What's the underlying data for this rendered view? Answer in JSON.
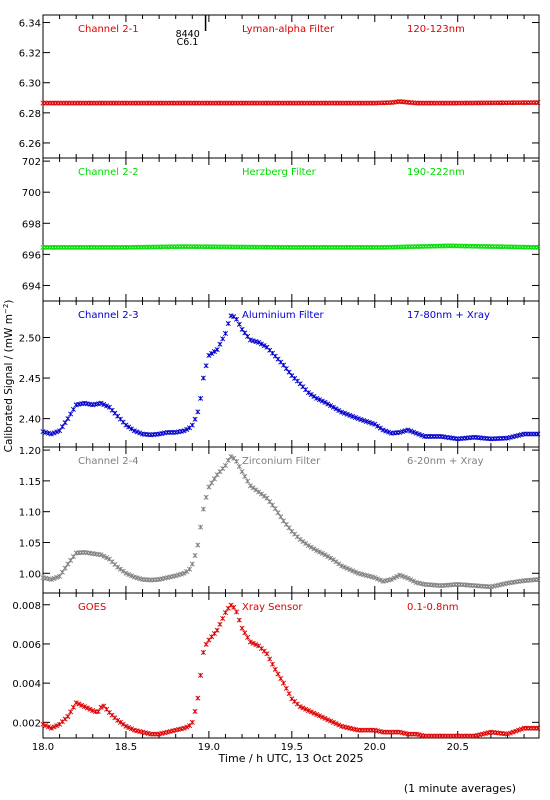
{
  "x_axis": {
    "label": "Time / h UTC, 13 Oct 2025",
    "range": [
      18.0,
      20.99
    ],
    "ticks": [
      18.0,
      18.5,
      19.0,
      19.5,
      20.0,
      20.5
    ],
    "tick_labels": [
      "18.0",
      "18.5",
      "19.0",
      "19.5",
      "20.0",
      "20.5"
    ]
  },
  "y_axis_label": "Calibrated Signal / (mW m^-2)",
  "footnote": "(1 minute averages)",
  "event_marker": {
    "time": 18.98,
    "label_1": "8440",
    "label_2": "C6.1"
  },
  "chart_data": [
    {
      "type": "scatter",
      "panel": "channel-2-1",
      "channel": "Channel 2-1",
      "filter": "Lyman-alpha Filter",
      "band": "120-123nm",
      "color": "#dd0000",
      "ylim": [
        6.25,
        6.345
      ],
      "yticks": [
        6.26,
        6.28,
        6.3,
        6.32,
        6.34
      ],
      "ytick_labels": [
        "6.26",
        "6.28",
        "6.30",
        "6.32",
        "6.34"
      ],
      "x": [
        18.0,
        19.0,
        20.0,
        20.1,
        20.15,
        20.2,
        20.25,
        20.5,
        20.99
      ],
      "y": [
        6.2865,
        6.2865,
        6.2865,
        6.2868,
        6.2875,
        6.287,
        6.2865,
        6.2865,
        6.2868
      ]
    },
    {
      "type": "scatter",
      "panel": "channel-2-2",
      "channel": "Channel 2-2",
      "filter": "Herzberg Filter",
      "band": "190-222nm",
      "color": "#00dd00",
      "ylim": [
        693.0,
        702.2
      ],
      "yticks": [
        694,
        696,
        698,
        700,
        702
      ],
      "ytick_labels": [
        "694",
        "696",
        "698",
        "700",
        "702"
      ],
      "x": [
        18.0,
        18.5,
        18.85,
        19.5,
        20.05,
        20.45,
        20.99
      ],
      "y": [
        696.45,
        696.45,
        696.5,
        696.45,
        696.45,
        696.55,
        696.45
      ]
    },
    {
      "type": "scatter",
      "panel": "channel-2-3",
      "channel": "Channel 2-3",
      "filter": "Aluminium Filter",
      "band": "17-80nm + Xray",
      "color": "#0000cc",
      "ylim": [
        2.365,
        2.545
      ],
      "yticks": [
        2.4,
        2.45,
        2.5
      ],
      "ytick_labels": [
        "2.40",
        "2.45",
        "2.50"
      ],
      "x": [
        18.0,
        18.05,
        18.1,
        18.15,
        18.2,
        18.25,
        18.3,
        18.35,
        18.4,
        18.45,
        18.5,
        18.55,
        18.6,
        18.65,
        18.7,
        18.75,
        18.8,
        18.85,
        18.88,
        18.9,
        18.93,
        18.95,
        18.97,
        19.0,
        19.05,
        19.1,
        19.13,
        19.16,
        19.2,
        19.25,
        19.3,
        19.35,
        19.4,
        19.45,
        19.5,
        19.55,
        19.6,
        19.65,
        19.7,
        19.75,
        19.8,
        19.9,
        20.0,
        20.05,
        20.1,
        20.15,
        20.2,
        20.25,
        20.3,
        20.4,
        20.5,
        20.6,
        20.7,
        20.8,
        20.9,
        20.99
      ],
      "y": [
        2.384,
        2.381,
        2.385,
        2.4,
        2.417,
        2.419,
        2.417,
        2.419,
        2.414,
        2.403,
        2.392,
        2.385,
        2.381,
        2.38,
        2.381,
        2.383,
        2.383,
        2.385,
        2.388,
        2.392,
        2.405,
        2.425,
        2.455,
        2.478,
        2.485,
        2.505,
        2.527,
        2.525,
        2.51,
        2.497,
        2.494,
        2.488,
        2.477,
        2.466,
        2.453,
        2.443,
        2.432,
        2.425,
        2.42,
        2.414,
        2.408,
        2.4,
        2.393,
        2.386,
        2.382,
        2.383,
        2.386,
        2.382,
        2.378,
        2.378,
        2.375,
        2.377,
        2.375,
        2.376,
        2.381,
        2.381
      ]
    },
    {
      "type": "scatter",
      "panel": "channel-2-4",
      "channel": "Channel 2-4",
      "filter": "Zirconium Filter",
      "band": "6-20nm + Xray",
      "color": "#808080",
      "ylim": [
        0.968,
        1.205
      ],
      "yticks": [
        1.0,
        1.05,
        1.1,
        1.15,
        1.2
      ],
      "ytick_labels": [
        "1.00",
        "1.05",
        "1.10",
        "1.15",
        "1.20"
      ],
      "x": [
        18.0,
        18.05,
        18.1,
        18.15,
        18.2,
        18.25,
        18.3,
        18.35,
        18.4,
        18.45,
        18.5,
        18.55,
        18.6,
        18.65,
        18.7,
        18.75,
        18.8,
        18.85,
        18.88,
        18.9,
        18.93,
        18.95,
        18.97,
        19.0,
        19.05,
        19.1,
        19.13,
        19.16,
        19.2,
        19.25,
        19.3,
        19.35,
        19.4,
        19.45,
        19.5,
        19.55,
        19.6,
        19.65,
        19.7,
        19.75,
        19.8,
        19.9,
        20.0,
        20.05,
        20.1,
        20.15,
        20.2,
        20.25,
        20.3,
        20.4,
        20.5,
        20.6,
        20.7,
        20.8,
        20.9,
        20.99
      ],
      "y": [
        0.993,
        0.99,
        0.995,
        1.015,
        1.033,
        1.034,
        1.032,
        1.03,
        1.023,
        1.01,
        1.0,
        0.994,
        0.99,
        0.989,
        0.99,
        0.993,
        0.996,
        1.0,
        1.005,
        1.015,
        1.04,
        1.075,
        1.11,
        1.14,
        1.16,
        1.175,
        1.19,
        1.185,
        1.165,
        1.142,
        1.132,
        1.122,
        1.105,
        1.085,
        1.068,
        1.055,
        1.045,
        1.037,
        1.03,
        1.022,
        1.012,
        1.0,
        0.993,
        0.987,
        0.99,
        0.997,
        0.992,
        0.985,
        0.982,
        0.98,
        0.982,
        0.98,
        0.978,
        0.984,
        0.988,
        0.99
      ]
    },
    {
      "type": "scatter",
      "panel": "goes",
      "channel": "GOES",
      "filter": "Xray Sensor",
      "band": "0.1-0.8nm",
      "color": "#dd0000",
      "ylim": [
        0.0012,
        0.0086
      ],
      "yticks": [
        0.002,
        0.004,
        0.006,
        0.008
      ],
      "ytick_labels": [
        "0.002",
        "0.004",
        "0.006",
        "0.008"
      ],
      "x": [
        18.0,
        18.05,
        18.1,
        18.15,
        18.2,
        18.25,
        18.3,
        18.33,
        18.36,
        18.4,
        18.45,
        18.5,
        18.55,
        18.6,
        18.65,
        18.7,
        18.75,
        18.8,
        18.85,
        18.88,
        18.9,
        18.93,
        18.95,
        18.97,
        19.0,
        19.05,
        19.1,
        19.13,
        19.16,
        19.2,
        19.25,
        19.3,
        19.35,
        19.4,
        19.45,
        19.5,
        19.55,
        19.6,
        19.65,
        19.7,
        19.75,
        19.8,
        19.9,
        20.0,
        20.05,
        20.1,
        20.15,
        20.2,
        20.25,
        20.3,
        20.4,
        20.5,
        20.6,
        20.7,
        20.8,
        20.9,
        20.99
      ],
      "y": [
        0.0019,
        0.0017,
        0.0019,
        0.0023,
        0.003,
        0.0028,
        0.0026,
        0.0025,
        0.0029,
        0.0025,
        0.0021,
        0.0018,
        0.0016,
        0.0015,
        0.0014,
        0.0014,
        0.0015,
        0.0016,
        0.0017,
        0.0018,
        0.002,
        0.003,
        0.0044,
        0.0058,
        0.0062,
        0.0067,
        0.0076,
        0.008,
        0.0078,
        0.0068,
        0.0061,
        0.0059,
        0.0055,
        0.0047,
        0.004,
        0.0032,
        0.0028,
        0.0026,
        0.0024,
        0.0022,
        0.002,
        0.0018,
        0.0016,
        0.0016,
        0.0015,
        0.0015,
        0.0015,
        0.0014,
        0.0014,
        0.0013,
        0.0013,
        0.0013,
        0.0013,
        0.0015,
        0.0014,
        0.0017,
        0.0017
      ]
    }
  ]
}
